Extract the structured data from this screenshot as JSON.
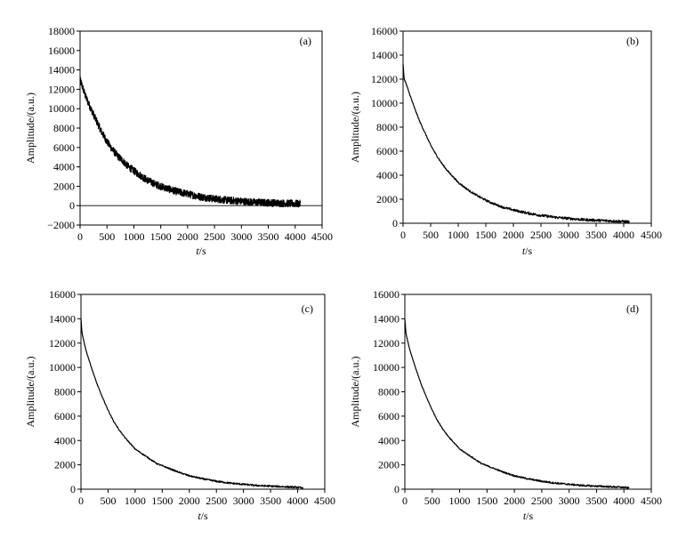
{
  "chart_data": [
    {
      "type": "line",
      "panel_label": "(a)",
      "xlabel_italic": "t",
      "xlabel_unit": "/s",
      "ylabel": "Amplitude/(a.u.)",
      "xlim": [
        0,
        4500
      ],
      "ylim": [
        -2000,
        18000
      ],
      "xticks": [
        0,
        500,
        1000,
        1500,
        2000,
        2500,
        3000,
        3500,
        4000,
        4500
      ],
      "yticks": [
        -2000,
        0,
        2000,
        4000,
        6000,
        8000,
        10000,
        12000,
        14000,
        16000,
        18000
      ],
      "noise": "high",
      "series": [
        {
          "x": [
            0,
            100,
            200,
            300,
            400,
            500,
            600,
            700,
            800,
            900,
            1000,
            1200,
            1400,
            1600,
            1800,
            2000,
            2250,
            2500,
            2750,
            3000,
            3250,
            3500,
            3750,
            4000,
            4100
          ],
          "values": [
            13000,
            11300,
            10000,
            8800,
            7600,
            6600,
            5800,
            5100,
            4600,
            4000,
            3600,
            2800,
            2200,
            1800,
            1450,
            1200,
            900,
            700,
            550,
            450,
            350,
            300,
            250,
            200,
            200
          ]
        }
      ]
    },
    {
      "type": "line",
      "panel_label": "(b)",
      "xlabel_italic": "t",
      "xlabel_unit": "/s",
      "ylabel": "Amplitude/(a.u.)",
      "xlim": [
        0,
        4500
      ],
      "ylim": [
        0,
        16000
      ],
      "xticks": [
        0,
        500,
        1000,
        1500,
        2000,
        2500,
        3000,
        3500,
        4000,
        4500
      ],
      "yticks": [
        0,
        2000,
        4000,
        6000,
        8000,
        10000,
        12000,
        14000,
        16000
      ],
      "noise": "medium",
      "series": [
        {
          "x": [
            0,
            20,
            50,
            100,
            200,
            300,
            400,
            500,
            600,
            700,
            800,
            900,
            1000,
            1200,
            1400,
            1600,
            1800,
            2000,
            2250,
            2500,
            2750,
            3000,
            3250,
            3500,
            3750,
            4000,
            4100
          ],
          "values": [
            13300,
            12000,
            11700,
            11000,
            9700,
            8500,
            7500,
            6500,
            5700,
            5000,
            4400,
            3900,
            3400,
            2700,
            2150,
            1700,
            1350,
            1100,
            850,
            650,
            500,
            400,
            300,
            250,
            200,
            150,
            100
          ]
        }
      ]
    },
    {
      "type": "line",
      "panel_label": "(c)",
      "xlabel_italic": "t",
      "xlabel_unit": "/s",
      "ylabel": "Amplitude/(a.u.)",
      "xlim": [
        0,
        4500
      ],
      "ylim": [
        0,
        16000
      ],
      "xticks": [
        0,
        500,
        1000,
        1500,
        2000,
        2500,
        3000,
        3500,
        4000,
        4500
      ],
      "yticks": [
        0,
        2000,
        4000,
        6000,
        8000,
        10000,
        12000,
        14000,
        16000
      ],
      "noise": "low",
      "series": [
        {
          "x": [
            0,
            20,
            50,
            100,
            200,
            300,
            400,
            500,
            600,
            700,
            800,
            900,
            1000,
            1200,
            1400,
            1600,
            1800,
            2000,
            2250,
            2500,
            2750,
            3000,
            3250,
            3500,
            3750,
            4000,
            4100
          ],
          "values": [
            14000,
            12800,
            12200,
            11300,
            9900,
            8600,
            7500,
            6500,
            5600,
            4900,
            4300,
            3800,
            3300,
            2700,
            2100,
            1750,
            1400,
            1100,
            850,
            650,
            500,
            400,
            300,
            250,
            200,
            150,
            100
          ]
        }
      ]
    },
    {
      "type": "line",
      "panel_label": "(d)",
      "xlabel_italic": "t",
      "xlabel_unit": "/s",
      "ylabel": "Amplitude/(a.u.)",
      "xlim": [
        0,
        4500
      ],
      "ylim": [
        0,
        16000
      ],
      "xticks": [
        0,
        500,
        1000,
        1500,
        2000,
        2500,
        3000,
        3500,
        4000,
        4500
      ],
      "yticks": [
        0,
        2000,
        4000,
        6000,
        8000,
        10000,
        12000,
        14000,
        16000
      ],
      "noise": "low",
      "series": [
        {
          "x": [
            0,
            20,
            50,
            100,
            200,
            300,
            400,
            500,
            600,
            700,
            800,
            900,
            1000,
            1200,
            1400,
            1600,
            1800,
            2000,
            2250,
            2500,
            2750,
            3000,
            3250,
            3500,
            3750,
            4000,
            4100
          ],
          "values": [
            14000,
            12800,
            12200,
            11300,
            9900,
            8600,
            7500,
            6500,
            5600,
            4900,
            4300,
            3800,
            3300,
            2700,
            2100,
            1750,
            1400,
            1100,
            850,
            650,
            500,
            400,
            300,
            250,
            200,
            150,
            100
          ]
        }
      ]
    }
  ]
}
